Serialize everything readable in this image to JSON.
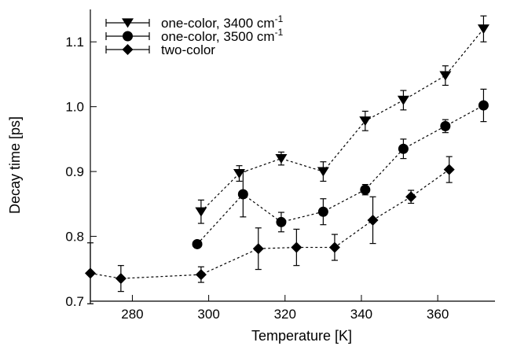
{
  "chart_data": {
    "type": "line",
    "xlabel": "Temperature [K]",
    "ylabel": "Decay time [ps]",
    "xlim": [
      269,
      375
    ],
    "ylim": [
      0.7,
      1.15
    ],
    "x_ticks": [
      280,
      300,
      320,
      340,
      360
    ],
    "y_ticks": [
      0.7,
      0.8,
      0.9,
      1.0,
      1.1
    ],
    "x_tick_labels": [
      "280",
      "300",
      "320",
      "340",
      "360"
    ],
    "y_tick_labels": [
      "0.7",
      "0.8",
      "0.9",
      "1.0",
      "1.1"
    ],
    "grid": false,
    "legend_position": "top-left",
    "series": [
      {
        "name": "one-color, 3400 cm",
        "name_superscript": "-1",
        "marker": "triangle-down",
        "x": [
          298,
          308,
          319,
          330,
          341,
          351,
          362,
          372
        ],
        "y": [
          0.838,
          0.897,
          0.92,
          0.9,
          0.978,
          1.01,
          1.048,
          1.12
        ],
        "err": [
          0.018,
          0.012,
          0.01,
          0.015,
          0.015,
          0.015,
          0.015,
          0.02
        ]
      },
      {
        "name": "one-color, 3500 cm",
        "name_superscript": "-1",
        "marker": "circle",
        "x": [
          297,
          309,
          319,
          330,
          341,
          351,
          362,
          372
        ],
        "y": [
          0.788,
          0.865,
          0.822,
          0.838,
          0.872,
          0.935,
          0.97,
          1.002
        ],
        "err": [
          0.0,
          0.035,
          0.015,
          0.02,
          0.008,
          0.015,
          0.01,
          0.025
        ]
      },
      {
        "name": "two-color",
        "name_superscript": "",
        "marker": "diamond",
        "x": [
          269,
          277,
          298,
          313,
          323,
          333,
          343,
          353,
          363
        ],
        "y": [
          0.743,
          0.735,
          0.741,
          0.781,
          0.783,
          0.783,
          0.825,
          0.861,
          0.903
        ],
        "err": [
          0.047,
          0.02,
          0.012,
          0.032,
          0.028,
          0.02,
          0.036,
          0.01,
          0.02
        ]
      }
    ]
  }
}
